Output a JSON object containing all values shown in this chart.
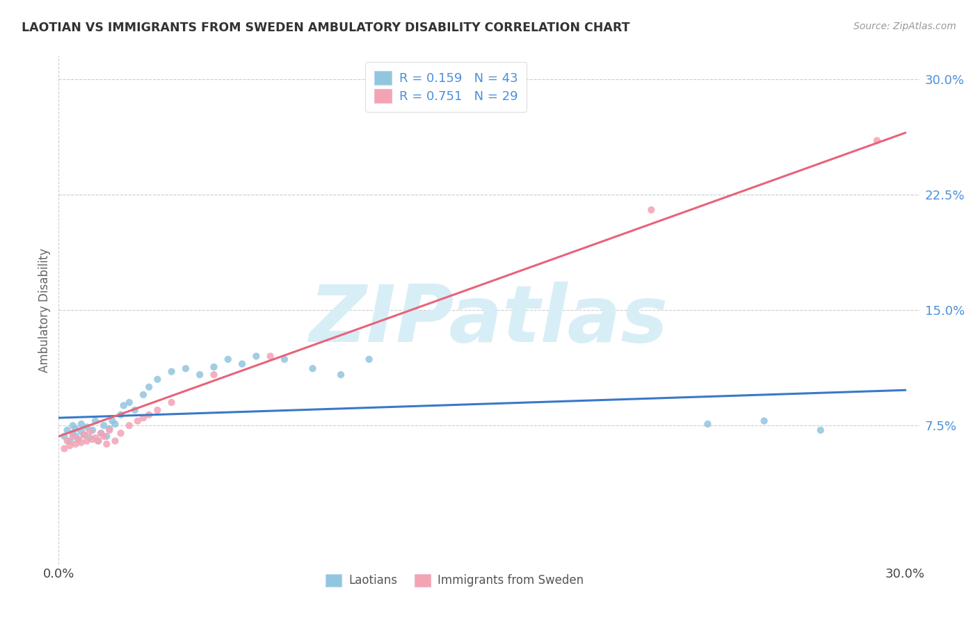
{
  "title": "LAOTIAN VS IMMIGRANTS FROM SWEDEN AMBULATORY DISABILITY CORRELATION CHART",
  "source": "Source: ZipAtlas.com",
  "ylabel": "Ambulatory Disability",
  "legend_label1": "Laotians",
  "legend_label2": "Immigrants from Sweden",
  "r1": "0.159",
  "n1": "43",
  "r2": "0.751",
  "n2": "29",
  "color1": "#92c5de",
  "color2": "#f4a3b5",
  "line1_color": "#3a78c9",
  "line2_color": "#e8637a",
  "background_color": "#ffffff",
  "grid_color": "#cccccc",
  "watermark_text": "ZIPatlas",
  "watermark_color": "#d8eef7",
  "tick_label_color": "#4a90d9",
  "xlim": [
    0.0,
    0.305
  ],
  "ylim": [
    -0.015,
    0.315
  ],
  "yticks": [
    0.075,
    0.15,
    0.225,
    0.3
  ],
  "ytick_labels": [
    "7.5%",
    "15.0%",
    "22.5%",
    "30.0%"
  ],
  "laotian_x": [
    0.002,
    0.003,
    0.004,
    0.005,
    0.005,
    0.006,
    0.006,
    0.007,
    0.008,
    0.008,
    0.009,
    0.01,
    0.011,
    0.012,
    0.013,
    0.014,
    0.015,
    0.016,
    0.017,
    0.018,
    0.019,
    0.02,
    0.022,
    0.023,
    0.025,
    0.027,
    0.03,
    0.032,
    0.035,
    0.04,
    0.045,
    0.05,
    0.055,
    0.06,
    0.065,
    0.07,
    0.08,
    0.09,
    0.1,
    0.11,
    0.23,
    0.25,
    0.27
  ],
  "laotian_y": [
    0.068,
    0.072,
    0.065,
    0.07,
    0.075,
    0.068,
    0.073,
    0.066,
    0.071,
    0.076,
    0.069,
    0.074,
    0.067,
    0.072,
    0.078,
    0.065,
    0.07,
    0.075,
    0.068,
    0.073,
    0.078,
    0.076,
    0.082,
    0.088,
    0.09,
    0.085,
    0.095,
    0.1,
    0.105,
    0.11,
    0.112,
    0.108,
    0.113,
    0.118,
    0.115,
    0.12,
    0.118,
    0.112,
    0.108,
    0.118,
    0.076,
    0.078,
    0.072
  ],
  "sweden_x": [
    0.002,
    0.003,
    0.004,
    0.005,
    0.006,
    0.007,
    0.008,
    0.009,
    0.01,
    0.011,
    0.012,
    0.013,
    0.014,
    0.015,
    0.016,
    0.017,
    0.018,
    0.02,
    0.022,
    0.025,
    0.028,
    0.03,
    0.032,
    0.035,
    0.04,
    0.055,
    0.075,
    0.21,
    0.29
  ],
  "sweden_y": [
    0.06,
    0.065,
    0.062,
    0.068,
    0.063,
    0.066,
    0.064,
    0.069,
    0.065,
    0.071,
    0.066,
    0.067,
    0.065,
    0.07,
    0.068,
    0.063,
    0.072,
    0.065,
    0.07,
    0.075,
    0.078,
    0.08,
    0.082,
    0.085,
    0.09,
    0.108,
    0.12,
    0.215,
    0.26
  ],
  "line1_x": [
    0.0,
    0.3
  ],
  "line1_y": [
    0.08,
    0.098
  ],
  "line2_x": [
    0.0,
    0.3
  ],
  "line2_y": [
    0.068,
    0.265
  ]
}
